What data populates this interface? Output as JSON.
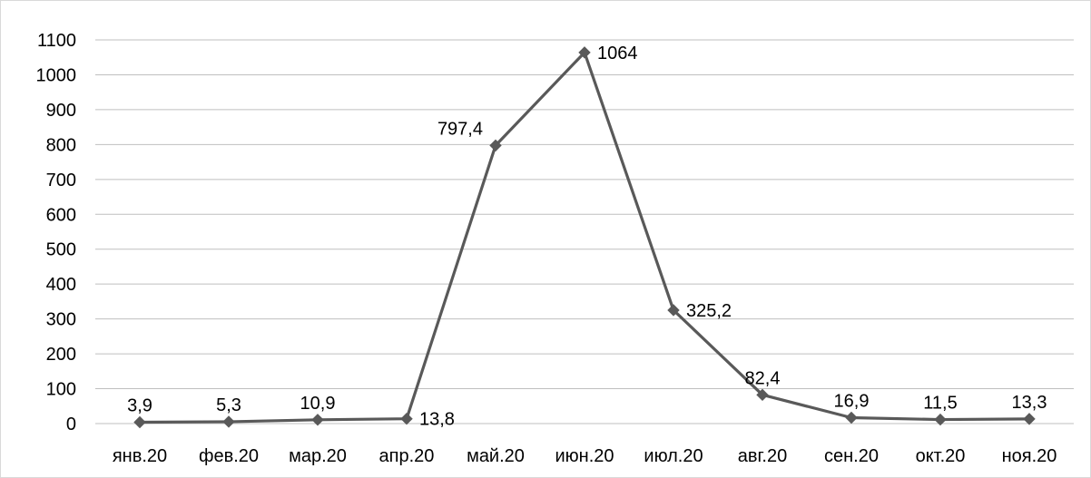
{
  "chart_data": {
    "type": "line",
    "categories": [
      "янв.20",
      "фев.20",
      "мар.20",
      "апр.20",
      "май.20",
      "июн.20",
      "июл.20",
      "авг.20",
      "сен.20",
      "окт.20",
      "ноя.20"
    ],
    "series": [
      {
        "values": [
          3.9,
          5.3,
          10.9,
          13.8,
          797.4,
          1064,
          325.2,
          82.4,
          16.9,
          11.5,
          13.3
        ],
        "labels": [
          "3,9",
          "5,3",
          "10,9",
          "13,8",
          "797,4",
          "1064",
          "325,2",
          "82,4",
          "16,9",
          "11,5",
          "13,3"
        ],
        "color": "#595959",
        "marker": "diamond"
      }
    ],
    "y_ticks": [
      "0",
      "100",
      "200",
      "300",
      "400",
      "500",
      "600",
      "700",
      "800",
      "900",
      "1000",
      "1100"
    ],
    "ylim": [
      0,
      1100
    ],
    "grid": true,
    "gridColor": "#bfbfbf",
    "legend": "none"
  }
}
